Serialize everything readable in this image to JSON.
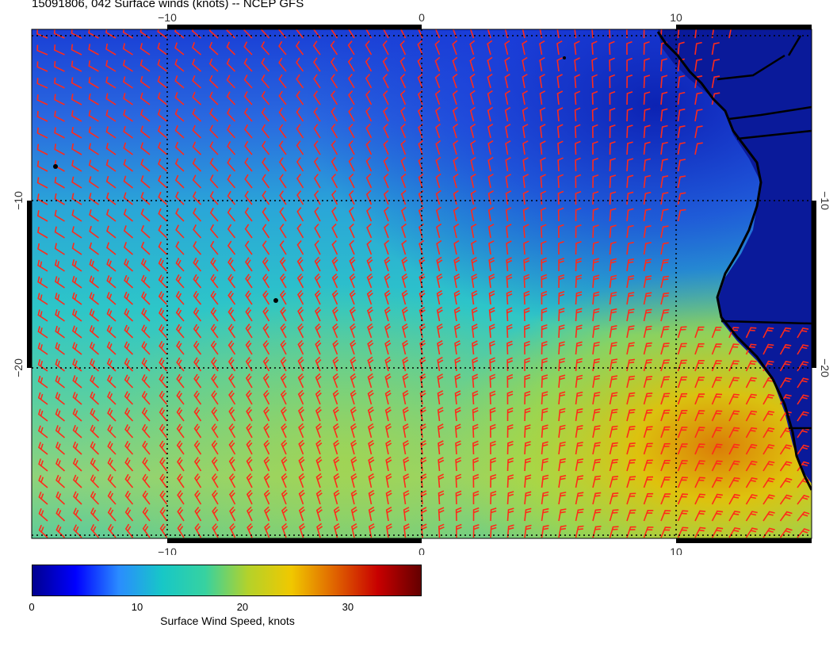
{
  "title": "15091806, 042 Surface winds (knots) -- NCEP GFS",
  "map": {
    "longitude_ticks_top": [
      "−10",
      "0",
      "10"
    ],
    "longitude_ticks_bottom": [
      "−10",
      "0",
      "10"
    ],
    "latitude_ticks_left": [
      "−10",
      "−20"
    ],
    "latitude_ticks_right": [
      "−10",
      "−20"
    ],
    "barb_color": "#ff2a1a",
    "coastline_color": "#000000",
    "gridline_style": "dotted"
  },
  "colorbar": {
    "label": "Surface Wind Speed, knots",
    "ticks": [
      "0",
      "10",
      "20",
      "30"
    ],
    "tick_values": [
      0,
      10,
      20,
      30
    ],
    "range": [
      0,
      37
    ],
    "colors": [
      "#00008f",
      "#0000ff",
      "#2a8cff",
      "#17c7c7",
      "#37d2a0",
      "#b4d22a",
      "#f0c800",
      "#e06400",
      "#c80000",
      "#640000"
    ]
  }
}
